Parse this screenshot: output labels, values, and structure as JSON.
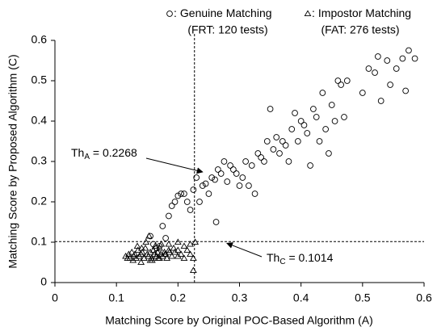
{
  "chart_data": {
    "type": "scatter",
    "xlabel": "Matching Score by Original POC-Based Algorithm (A)",
    "ylabel": "Matching Score by Proposed Algorithm (C)",
    "xlim": [
      0,
      0.6
    ],
    "xticks": [
      0,
      0.1,
      0.2,
      0.3,
      0.4,
      0.5,
      0.6
    ],
    "ylim": [
      0,
      0.6
    ],
    "yticks": [
      0,
      0.1,
      0.2,
      0.3,
      0.4,
      0.5,
      0.6
    ],
    "legend_separator": ":",
    "series": [
      {
        "name": "Genuine Matching",
        "note": "(FRT: 120 tests)",
        "marker": "circle",
        "color": "#000000",
        "x": [
          0.155,
          0.16,
          0.165,
          0.17,
          0.175,
          0.18,
          0.185,
          0.19,
          0.195,
          0.2,
          0.205,
          0.21,
          0.215,
          0.22,
          0.225,
          0.23,
          0.235,
          0.24,
          0.245,
          0.25,
          0.255,
          0.26,
          0.262,
          0.265,
          0.27,
          0.275,
          0.28,
          0.285,
          0.29,
          0.295,
          0.3,
          0.305,
          0.31,
          0.315,
          0.32,
          0.325,
          0.33,
          0.335,
          0.34,
          0.345,
          0.35,
          0.355,
          0.36,
          0.365,
          0.37,
          0.375,
          0.38,
          0.385,
          0.39,
          0.395,
          0.4,
          0.405,
          0.41,
          0.415,
          0.42,
          0.425,
          0.43,
          0.435,
          0.44,
          0.445,
          0.45,
          0.455,
          0.46,
          0.465,
          0.47,
          0.475,
          0.5,
          0.51,
          0.52,
          0.525,
          0.53,
          0.54,
          0.545,
          0.555,
          0.57,
          0.575,
          0.585,
          0.565
        ],
        "values": [
          0.115,
          0.095,
          0.085,
          0.09,
          0.14,
          0.11,
          0.165,
          0.19,
          0.2,
          0.215,
          0.22,
          0.22,
          0.2,
          0.18,
          0.23,
          0.26,
          0.2,
          0.24,
          0.245,
          0.22,
          0.26,
          0.255,
          0.15,
          0.28,
          0.27,
          0.3,
          0.25,
          0.29,
          0.28,
          0.27,
          0.24,
          0.26,
          0.3,
          0.24,
          0.29,
          0.22,
          0.32,
          0.31,
          0.3,
          0.35,
          0.43,
          0.33,
          0.36,
          0.32,
          0.35,
          0.34,
          0.3,
          0.38,
          0.42,
          0.35,
          0.4,
          0.39,
          0.37,
          0.29,
          0.43,
          0.41,
          0.35,
          0.47,
          0.38,
          0.32,
          0.44,
          0.4,
          0.5,
          0.49,
          0.41,
          0.5,
          0.47,
          0.53,
          0.52,
          0.56,
          0.45,
          0.55,
          0.49,
          0.53,
          0.475,
          0.575,
          0.555,
          0.555
        ]
      },
      {
        "name": "Impostor Matching",
        "note": "(FAT: 276 tests)",
        "marker": "triangle",
        "color": "#000000",
        "x": [
          0.115,
          0.12,
          0.122,
          0.125,
          0.128,
          0.13,
          0.132,
          0.135,
          0.137,
          0.14,
          0.142,
          0.145,
          0.147,
          0.15,
          0.152,
          0.155,
          0.157,
          0.16,
          0.162,
          0.165,
          0.167,
          0.17,
          0.172,
          0.175,
          0.178,
          0.18,
          0.182,
          0.185,
          0.19,
          0.195,
          0.2,
          0.205,
          0.21,
          0.215,
          0.22,
          0.225,
          0.228,
          0.118,
          0.127,
          0.134,
          0.141,
          0.148,
          0.153,
          0.158,
          0.163,
          0.168,
          0.173,
          0.179,
          0.186,
          0.193,
          0.2,
          0.21,
          0.22,
          0.225,
          0.14,
          0.155,
          0.165,
          0.17,
          0.185,
          0.2
        ],
        "values": [
          0.065,
          0.07,
          0.06,
          0.075,
          0.065,
          0.07,
          0.06,
          0.08,
          0.065,
          0.07,
          0.075,
          0.06,
          0.085,
          0.07,
          0.065,
          0.075,
          0.06,
          0.08,
          0.07,
          0.065,
          0.075,
          0.06,
          0.07,
          0.065,
          0.075,
          0.07,
          0.06,
          0.08,
          0.065,
          0.075,
          0.1,
          0.07,
          0.09,
          0.08,
          0.095,
          0.06,
          0.1,
          0.06,
          0.055,
          0.09,
          0.085,
          0.1,
          0.115,
          0.055,
          0.09,
          0.06,
          0.095,
          0.07,
          0.075,
          0.085,
          0.065,
          0.06,
          0.07,
          0.03,
          0.05,
          0.055,
          0.065,
          0.085,
          0.095,
          0.08
        ]
      }
    ],
    "thresholds": [
      {
        "axis": "x",
        "value": 0.2268,
        "label": "Th",
        "subscript": "A",
        "value_label": " = 0.2268"
      },
      {
        "axis": "y",
        "value": 0.1014,
        "label": "Th",
        "subscript": "C",
        "value_label": " = 0.1014"
      }
    ]
  }
}
